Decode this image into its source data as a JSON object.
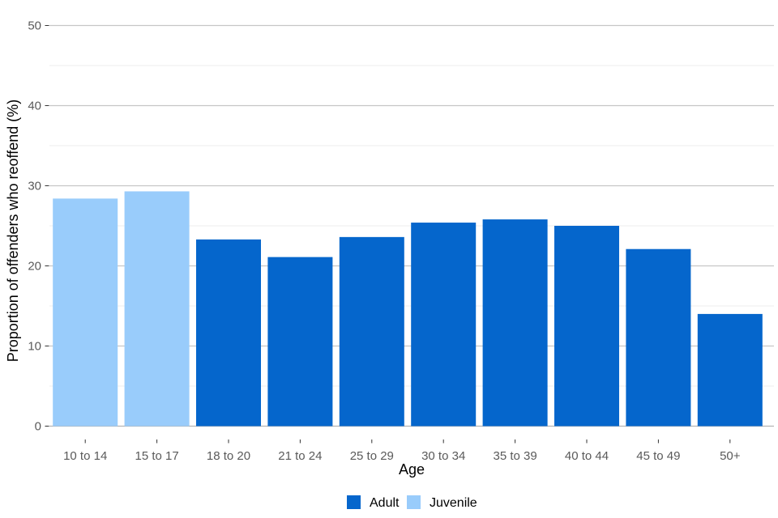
{
  "chart_data": {
    "type": "bar",
    "title": "",
    "xlabel": "Age",
    "ylabel": "Proportion of offenders who reoffend (%)",
    "categories": [
      "10 to 14",
      "15 to 17",
      "18 to 20",
      "21 to 24",
      "25 to 29",
      "30 to 34",
      "35 to 39",
      "40 to 44",
      "45 to 49",
      "50+"
    ],
    "values": [
      28.4,
      29.3,
      23.3,
      21.1,
      23.6,
      25.4,
      25.8,
      25.0,
      22.1,
      14.0
    ],
    "groups": [
      "Juvenile",
      "Juvenile",
      "Adult",
      "Adult",
      "Adult",
      "Adult",
      "Adult",
      "Adult",
      "Adult",
      "Adult"
    ],
    "series": [
      {
        "name": "Adult",
        "color": "#0566cc",
        "categories": [
          "18 to 20",
          "21 to 24",
          "25 to 29",
          "30 to 34",
          "35 to 39",
          "40 to 44",
          "45 to 49",
          "50+"
        ],
        "values": [
          23.3,
          21.1,
          23.6,
          25.4,
          25.8,
          25.0,
          22.1,
          14.0
        ]
      },
      {
        "name": "Juvenile",
        "color": "#99ccfb",
        "categories": [
          "10 to 14",
          "15 to 17"
        ],
        "values": [
          28.4,
          29.3
        ]
      }
    ],
    "ylim": [
      0,
      50
    ],
    "yticks": [
      0,
      10,
      20,
      30,
      40,
      50
    ],
    "yticks_minor": [
      5,
      15,
      25,
      35,
      45
    ],
    "grid": true,
    "legend_position": "bottom"
  },
  "legend": {
    "items": [
      {
        "label": "Adult",
        "color": "#0566cc"
      },
      {
        "label": "Juvenile",
        "color": "#99ccfb"
      }
    ]
  },
  "colors": {
    "adult": "#0566cc",
    "juvenile": "#99ccfb",
    "grid_major": "#c6c6c6",
    "grid_minor": "#ededed",
    "axis_zero_line": "#b3b3b3",
    "tick_mark": "#333333",
    "tick_label": "#5a5a5a",
    "axis_title": "#000000",
    "background": "#ffffff"
  }
}
